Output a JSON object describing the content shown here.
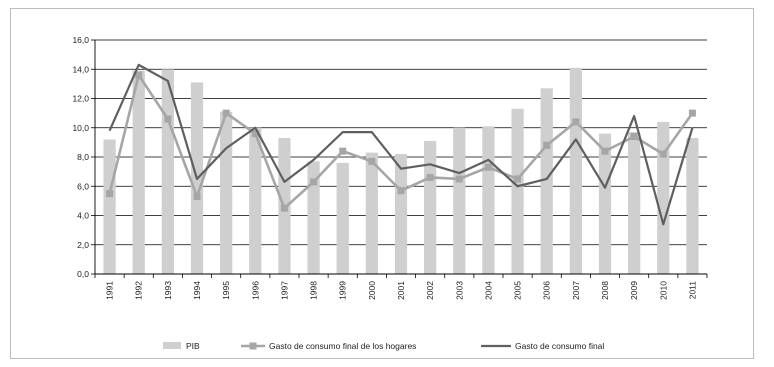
{
  "chart_data": {
    "type": "bar+line",
    "title": "",
    "xlabel": "",
    "ylabel": "",
    "ylim": [
      0,
      16
    ],
    "yticks": [
      "0,0",
      "2,0",
      "4,0",
      "6,0",
      "8,0",
      "10,0",
      "12,0",
      "14,0",
      "16,0"
    ],
    "categories": [
      "1991",
      "1992",
      "1993",
      "1994",
      "1995",
      "1996",
      "1997",
      "1998",
      "1999",
      "2000",
      "2001",
      "2002",
      "2003",
      "2004",
      "2005",
      "2006",
      "2007",
      "2008",
      "2009",
      "2010",
      "2011"
    ],
    "grid": true,
    "legend_position": "bottom",
    "series": [
      {
        "name": "PIB",
        "kind": "bar",
        "color": "#cfcfcf",
        "values": [
          9.2,
          13.9,
          14.0,
          13.1,
          11.1,
          10.0,
          9.3,
          7.7,
          7.6,
          8.3,
          8.2,
          9.1,
          10.0,
          10.1,
          11.3,
          12.7,
          14.1,
          9.6,
          9.7,
          10.4,
          9.3
        ]
      },
      {
        "name": "Gasto de consumo final de los hogares",
        "kind": "line-marker",
        "color": "#a6a6a6",
        "values": [
          5.5,
          13.6,
          10.6,
          5.3,
          11.0,
          9.6,
          4.5,
          6.3,
          8.4,
          7.7,
          5.7,
          6.6,
          6.5,
          7.3,
          6.5,
          8.8,
          10.4,
          8.4,
          9.4,
          8.2,
          11.0
        ]
      },
      {
        "name": "Gasto de consumo final",
        "kind": "line",
        "color": "#5f5f5f",
        "values": [
          9.8,
          14.3,
          13.2,
          6.5,
          8.6,
          10.0,
          6.3,
          7.8,
          9.7,
          9.7,
          7.2,
          7.5,
          6.9,
          7.8,
          6.0,
          6.5,
          9.2,
          5.9,
          10.8,
          3.4,
          10.0
        ]
      }
    ]
  }
}
